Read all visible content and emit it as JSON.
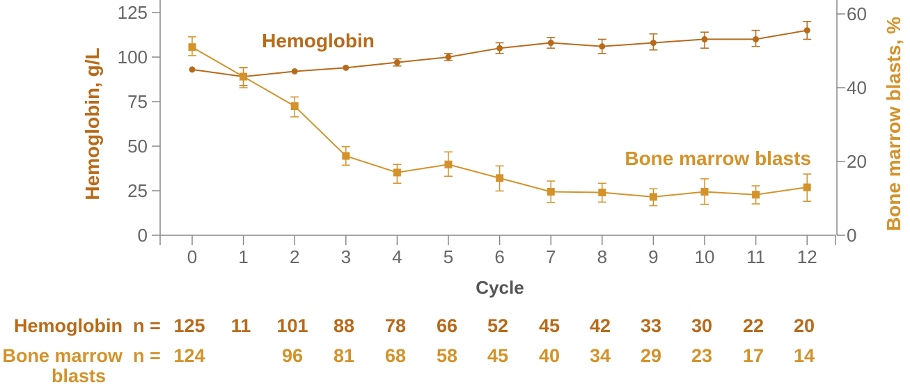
{
  "chart_data": {
    "type": "line",
    "xlabel": "Cycle",
    "x": [
      0,
      1,
      2,
      3,
      4,
      5,
      6,
      7,
      8,
      9,
      10,
      11,
      12
    ],
    "y_left": {
      "label": "Hemoglobin, g/L",
      "ticks": [
        0,
        25,
        50,
        75,
        100,
        125
      ],
      "ylim": [
        0,
        125
      ]
    },
    "y_right": {
      "label": "Bone marrow blasts, %",
      "ticks": [
        0,
        20,
        40,
        60
      ],
      "ylim": [
        0,
        60
      ]
    },
    "colors": {
      "hemoglobin": "#b86a1a",
      "blasts": "#d4922a",
      "axis": "#888888"
    },
    "series": [
      {
        "name": "Hemoglobin",
        "axis": "left",
        "marker": "circle",
        "values": [
          93,
          89,
          92,
          94,
          97,
          100,
          105,
          108,
          106,
          108,
          110,
          110,
          115
        ],
        "err_low": [
          93,
          84,
          92,
          94,
          95,
          98,
          102,
          105,
          102,
          104,
          105,
          106,
          110
        ],
        "err_high": [
          93,
          94,
          92,
          94,
          99,
          102,
          108,
          111,
          110,
          113,
          114,
          115,
          120
        ]
      },
      {
        "name": "Bone marrow blasts",
        "axis": "right",
        "marker": "square",
        "values": [
          51,
          43,
          35,
          21.5,
          17,
          19.2,
          15.5,
          11.8,
          11.6,
          10.4,
          11.8,
          11,
          13
        ],
        "err_low": [
          48.7,
          40,
          32.1,
          19,
          14.1,
          16,
          12,
          8.9,
          9,
          8,
          8.4,
          8.5,
          9.2
        ],
        "err_high": [
          53.8,
          45.5,
          37.5,
          24,
          19.2,
          22.6,
          18.8,
          14.7,
          14.1,
          12.6,
          15.3,
          13.4,
          16.6
        ]
      }
    ],
    "n_table": {
      "hemoglobin": {
        "label": "Hemoglobin",
        "prefix": "n  =",
        "values": [
          "125",
          "11",
          "101",
          "88",
          "78",
          "66",
          "52",
          "45",
          "42",
          "33",
          "30",
          "22",
          "20"
        ]
      },
      "blasts": {
        "label_line1": "Bone marrow",
        "label_line2": "blasts",
        "prefix": "n  =",
        "values": [
          "124",
          "",
          "96",
          "81",
          "68",
          "58",
          "45",
          "40",
          "34",
          "29",
          "23",
          "17",
          "14"
        ]
      }
    }
  }
}
